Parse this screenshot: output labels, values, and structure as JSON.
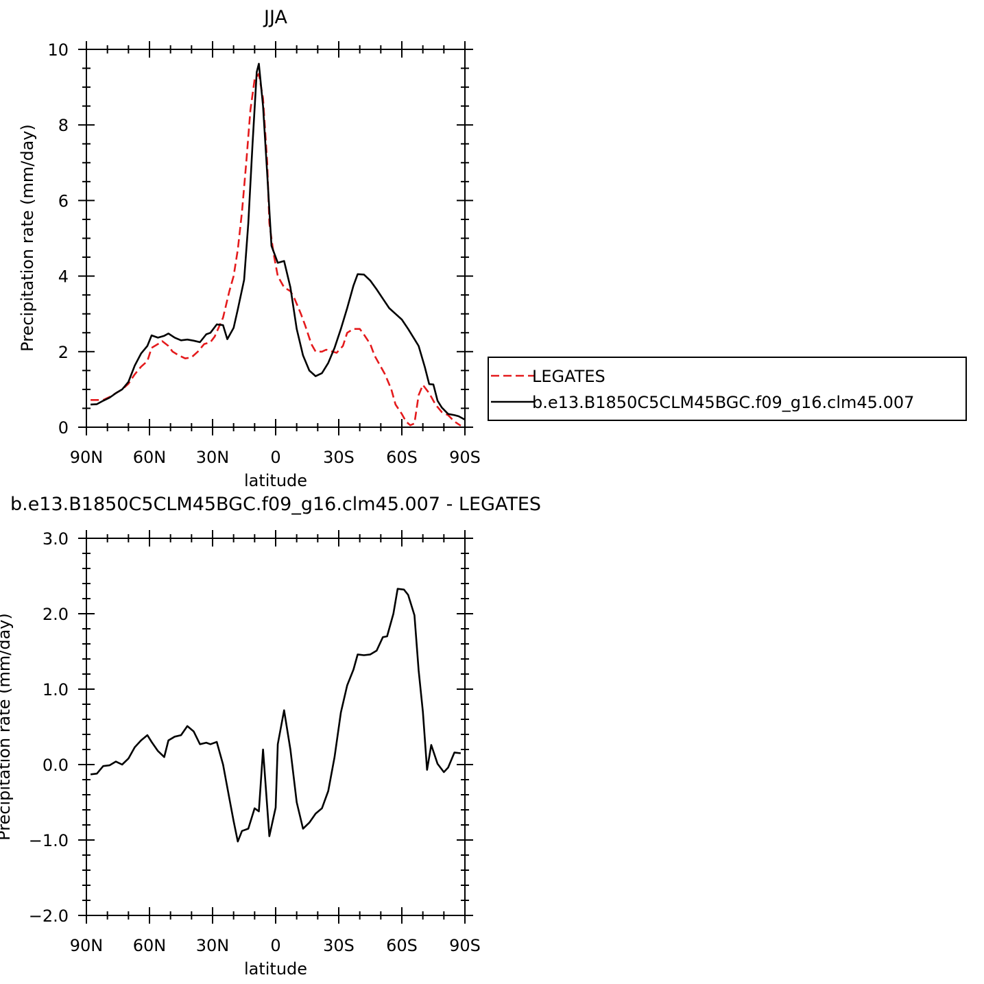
{
  "chart_data": [
    {
      "type": "line",
      "title": "JJA",
      "xlabel": "latitude",
      "ylabel": "Precipitation rate (mm/day)",
      "xlim": [
        90,
        -90
      ],
      "ylim": [
        0,
        10
      ],
      "x_ticks": [
        90,
        60,
        30,
        0,
        -30,
        -60,
        -90
      ],
      "x_tick_labels": [
        "90N",
        "60N",
        "30N",
        "0",
        "30S",
        "60S",
        "90S"
      ],
      "y_ticks": [
        0,
        2,
        4,
        6,
        8,
        10
      ],
      "y_tick_labels": [
        "0",
        "2",
        "4",
        "6",
        "8",
        "10"
      ],
      "legend": "right",
      "series": [
        {
          "name": "LEGATES",
          "color": "#e41a1c",
          "dash": true,
          "points": [
            [
              88,
              0.72
            ],
            [
              85,
              0.72
            ],
            [
              82,
              0.72
            ],
            [
              79,
              0.8
            ],
            [
              76,
              0.9
            ],
            [
              73,
              1.0
            ],
            [
              70,
              1.15
            ],
            [
              67,
              1.4
            ],
            [
              64,
              1.6
            ],
            [
              61,
              1.75
            ],
            [
              59,
              2.1
            ],
            [
              56,
              2.2
            ],
            [
              54,
              2.28
            ],
            [
              51,
              2.15
            ],
            [
              49,
              2.0
            ],
            [
              46,
              1.9
            ],
            [
              43,
              1.82
            ],
            [
              40,
              1.85
            ],
            [
              37,
              2.0
            ],
            [
              34,
              2.2
            ],
            [
              31,
              2.25
            ],
            [
              29,
              2.4
            ],
            [
              27,
              2.65
            ],
            [
              25,
              2.9
            ],
            [
              22,
              3.6
            ],
            [
              20,
              4.0
            ],
            [
              18,
              4.7
            ],
            [
              16,
              5.7
            ],
            [
              14,
              7.0
            ],
            [
              12,
              8.4
            ],
            [
              10,
              9.2
            ],
            [
              8,
              9.35
            ],
            [
              6,
              8.7
            ],
            [
              4,
              7.0
            ],
            [
              3,
              5.4
            ],
            [
              1,
              4.6
            ],
            [
              -1,
              4.0
            ],
            [
              -4,
              3.7
            ],
            [
              -7,
              3.6
            ],
            [
              -9,
              3.4
            ],
            [
              -12,
              3.0
            ],
            [
              -14,
              2.7
            ],
            [
              -17,
              2.2
            ],
            [
              -19,
              2.0
            ],
            [
              -22,
              2.0
            ],
            [
              -24,
              2.05
            ],
            [
              -27,
              2.0
            ],
            [
              -29,
              1.97
            ],
            [
              -32,
              2.15
            ],
            [
              -34,
              2.5
            ],
            [
              -37,
              2.6
            ],
            [
              -40,
              2.6
            ],
            [
              -42,
              2.45
            ],
            [
              -45,
              2.2
            ],
            [
              -47,
              1.9
            ],
            [
              -50,
              1.6
            ],
            [
              -52,
              1.4
            ],
            [
              -55,
              1.0
            ],
            [
              -57,
              0.6
            ],
            [
              -60,
              0.35
            ],
            [
              -62,
              0.15
            ],
            [
              -64,
              0.05
            ],
            [
              -66,
              0.1
            ],
            [
              -68,
              0.85
            ],
            [
              -70,
              1.12
            ],
            [
              -73,
              0.9
            ],
            [
              -76,
              0.6
            ],
            [
              -79,
              0.4
            ],
            [
              -82,
              0.32
            ],
            [
              -85,
              0.15
            ],
            [
              -88,
              0.04
            ]
          ]
        },
        {
          "name": "b.e13.B1850C5CLM45BGC.f09_g16.clm45.007",
          "color": "#000000",
          "dash": false,
          "points": [
            [
              88,
              0.6
            ],
            [
              85,
              0.61
            ],
            [
              82,
              0.7
            ],
            [
              79,
              0.78
            ],
            [
              76,
              0.9
            ],
            [
              73,
              1.0
            ],
            [
              70,
              1.2
            ],
            [
              67,
              1.63
            ],
            [
              64,
              1.95
            ],
            [
              61,
              2.15
            ],
            [
              59,
              2.43
            ],
            [
              56,
              2.37
            ],
            [
              53,
              2.42
            ],
            [
              51,
              2.48
            ],
            [
              48,
              2.37
            ],
            [
              45,
              2.3
            ],
            [
              42,
              2.32
            ],
            [
              39,
              2.29
            ],
            [
              36,
              2.25
            ],
            [
              33,
              2.46
            ],
            [
              31,
              2.5
            ],
            [
              28,
              2.72
            ],
            [
              25,
              2.7
            ],
            [
              23,
              2.33
            ],
            [
              20,
              2.63
            ],
            [
              18,
              3.12
            ],
            [
              15,
              3.9
            ],
            [
              13,
              5.4
            ],
            [
              11,
              7.5
            ],
            [
              9,
              9.4
            ],
            [
              8,
              9.62
            ],
            [
              6,
              8.5
            ],
            [
              4,
              6.7
            ],
            [
              2,
              4.8
            ],
            [
              -1,
              4.35
            ],
            [
              -4,
              4.4
            ],
            [
              -7,
              3.7
            ],
            [
              -10,
              2.6
            ],
            [
              -13,
              1.9
            ],
            [
              -16,
              1.5
            ],
            [
              -19,
              1.35
            ],
            [
              -22,
              1.43
            ],
            [
              -25,
              1.7
            ],
            [
              -28,
              2.1
            ],
            [
              -31,
              2.6
            ],
            [
              -34,
              3.15
            ],
            [
              -37,
              3.75
            ],
            [
              -39,
              4.05
            ],
            [
              -42,
              4.04
            ],
            [
              -45,
              3.88
            ],
            [
              -48,
              3.65
            ],
            [
              -51,
              3.4
            ],
            [
              -54,
              3.15
            ],
            [
              -57,
              3.0
            ],
            [
              -60,
              2.85
            ],
            [
              -63,
              2.6
            ],
            [
              -66,
              2.33
            ],
            [
              -68,
              2.15
            ],
            [
              -71,
              1.58
            ],
            [
              -73,
              1.14
            ],
            [
              -75,
              1.13
            ],
            [
              -77,
              0.7
            ],
            [
              -79,
              0.52
            ],
            [
              -82,
              0.35
            ],
            [
              -85,
              0.32
            ],
            [
              -87,
              0.29
            ],
            [
              -90,
              0.2
            ]
          ]
        }
      ]
    },
    {
      "type": "line",
      "title": "b.e13.B1850C5CLM45BGC.f09_g16.clm45.007 - LEGATES",
      "xlabel": "latitude",
      "ylabel": "Precipitation rate (mm/day)",
      "xlim": [
        90,
        -90
      ],
      "ylim": [
        -2.0,
        3.0
      ],
      "x_ticks": [
        90,
        60,
        30,
        0,
        -30,
        -60,
        -90
      ],
      "x_tick_labels": [
        "90N",
        "60N",
        "30N",
        "0",
        "30S",
        "60S",
        "90S"
      ],
      "y_ticks": [
        -2.0,
        -1.0,
        0.0,
        1.0,
        2.0,
        3.0
      ],
      "y_tick_labels": [
        "−2.0",
        "−1.0",
        "0.0",
        "1.0",
        "2.0",
        "3.0"
      ],
      "series": [
        {
          "color": "#000000",
          "dash": false,
          "points": [
            [
              88,
              -0.13
            ],
            [
              85,
              -0.12
            ],
            [
              82,
              -0.02
            ],
            [
              79,
              -0.01
            ],
            [
              76,
              0.04
            ],
            [
              73,
              0.0
            ],
            [
              70,
              0.08
            ],
            [
              67,
              0.23
            ],
            [
              64,
              0.32
            ],
            [
              61,
              0.39
            ],
            [
              59,
              0.3
            ],
            [
              56,
              0.18
            ],
            [
              53,
              0.1
            ],
            [
              51,
              0.32
            ],
            [
              48,
              0.37
            ],
            [
              45,
              0.39
            ],
            [
              42,
              0.51
            ],
            [
              39,
              0.44
            ],
            [
              36,
              0.27
            ],
            [
              33,
              0.29
            ],
            [
              31,
              0.27
            ],
            [
              28,
              0.3
            ],
            [
              25,
              0.0
            ],
            [
              22,
              -0.45
            ],
            [
              20,
              -0.75
            ],
            [
              18,
              -1.02
            ],
            [
              16,
              -0.88
            ],
            [
              13,
              -0.85
            ],
            [
              10,
              -0.58
            ],
            [
              8,
              -0.62
            ],
            [
              6,
              0.2
            ],
            [
              3,
              -0.95
            ],
            [
              0,
              -0.57
            ],
            [
              -1,
              0.27
            ],
            [
              -4,
              0.72
            ],
            [
              -7,
              0.2
            ],
            [
              -10,
              -0.5
            ],
            [
              -13,
              -0.85
            ],
            [
              -16,
              -0.77
            ],
            [
              -19,
              -0.65
            ],
            [
              -22,
              -0.58
            ],
            [
              -25,
              -0.35
            ],
            [
              -28,
              0.1
            ],
            [
              -31,
              0.69
            ],
            [
              -34,
              1.05
            ],
            [
              -37,
              1.26
            ],
            [
              -39,
              1.46
            ],
            [
              -42,
              1.45
            ],
            [
              -45,
              1.46
            ],
            [
              -48,
              1.51
            ],
            [
              -51,
              1.69
            ],
            [
              -53,
              1.7
            ],
            [
              -56,
              2.0
            ],
            [
              -58,
              2.33
            ],
            [
              -61,
              2.32
            ],
            [
              -63,
              2.25
            ],
            [
              -66,
              1.98
            ],
            [
              -68,
              1.25
            ],
            [
              -70,
              0.7
            ],
            [
              -72,
              -0.07
            ],
            [
              -74,
              0.26
            ],
            [
              -77,
              0.01
            ],
            [
              -80,
              -0.1
            ],
            [
              -82,
              -0.04
            ],
            [
              -85,
              0.16
            ],
            [
              -88,
              0.15
            ]
          ]
        }
      ]
    }
  ]
}
